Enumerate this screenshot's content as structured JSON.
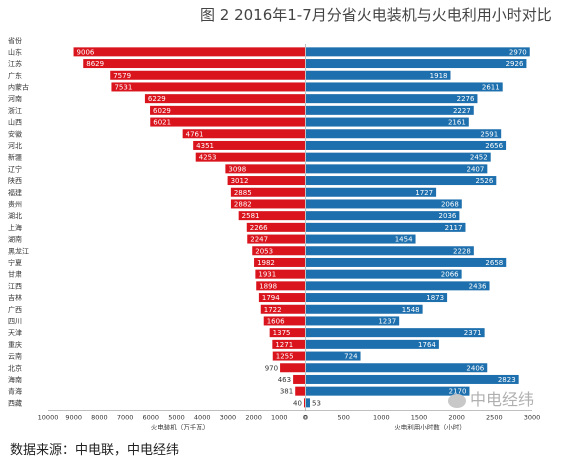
{
  "title": "图 2  2016年1-7月分省火电装机与火电利用小时对比",
  "source": "数据来源：中电联，中电经纬",
  "watermark": "中电经纬",
  "colors": {
    "left_bar": "#d9141d",
    "right_bar": "#1d6fad",
    "axis": "#999999",
    "text": "#333333"
  },
  "chart_data": {
    "type": "bar",
    "orientation": "horizontal-butterfly",
    "category_header": "省份",
    "categories": [
      "山东",
      "江苏",
      "广东",
      "内蒙古",
      "河南",
      "浙江",
      "山西",
      "安徽",
      "河北",
      "新疆",
      "辽宁",
      "陕西",
      "福建",
      "贵州",
      "湖北",
      "上海",
      "湖南",
      "黑龙江",
      "宁夏",
      "甘肃",
      "江西",
      "吉林",
      "广西",
      "四川",
      "天津",
      "重庆",
      "云南",
      "北京",
      "海南",
      "青海",
      "西藏"
    ],
    "series": [
      {
        "name": "火电装机（万千瓦）",
        "side": "left",
        "values": [
          9006,
          8629,
          7579,
          7531,
          6229,
          6029,
          6021,
          4761,
          4351,
          4253,
          3098,
          3012,
          2885,
          2882,
          2581,
          2266,
          2247,
          2053,
          1982,
          1931,
          1898,
          1794,
          1722,
          1606,
          1375,
          1271,
          1255,
          970,
          463,
          381,
          40
        ]
      },
      {
        "name": "火电利用小时数（小时）",
        "side": "right",
        "values": [
          2970,
          2926,
          1918,
          2611,
          2276,
          2227,
          2161,
          2591,
          2656,
          2452,
          2407,
          2526,
          1727,
          2068,
          2036,
          2117,
          1454,
          2228,
          2658,
          2066,
          2436,
          1873,
          1548,
          1237,
          2371,
          1764,
          724,
          2406,
          2823,
          2170,
          53
        ]
      }
    ],
    "left_axis": {
      "label": "火电装机（万千瓦）",
      "range": [
        0,
        10000
      ],
      "ticks": [
        10000,
        9000,
        8000,
        7000,
        6000,
        5000,
        4000,
        3000,
        2000,
        1000,
        0
      ]
    },
    "right_axis": {
      "label": "火电利用小时数（小时）",
      "range": [
        0,
        3000
      ],
      "ticks": [
        0,
        500,
        1000,
        1500,
        2000,
        2500,
        3000
      ]
    }
  }
}
